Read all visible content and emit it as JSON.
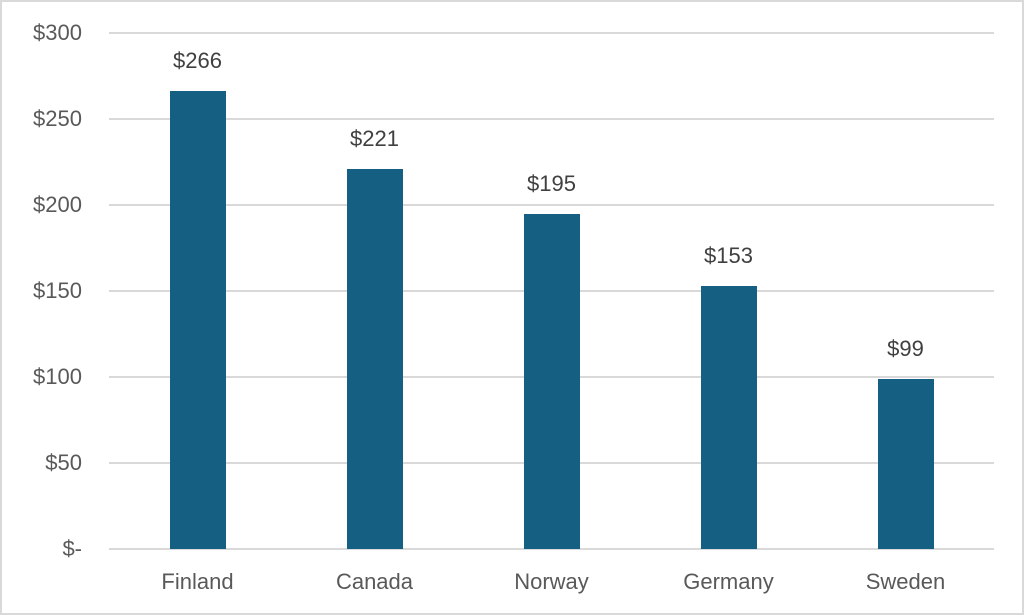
{
  "chart_data": {
    "type": "bar",
    "categories": [
      "Finland",
      "Canada",
      "Norway",
      "Germany",
      "Sweden"
    ],
    "values": [
      266,
      221,
      195,
      153,
      99
    ],
    "data_labels": [
      "$266",
      "$221",
      "$195",
      "$153",
      "$99"
    ],
    "y_ticks": [
      {
        "value": 0,
        "label": "$-"
      },
      {
        "value": 50,
        "label": "$50"
      },
      {
        "value": 100,
        "label": "$100"
      },
      {
        "value": 150,
        "label": "$150"
      },
      {
        "value": 200,
        "label": "$200"
      },
      {
        "value": 250,
        "label": "$250"
      },
      {
        "value": 300,
        "label": "$300"
      }
    ],
    "ylim": [
      0,
      300
    ],
    "grid": true,
    "legend": "none",
    "title": "",
    "xlabel": "",
    "ylabel": "",
    "colors": {
      "bar": "#156082",
      "gridline": "#D9D9D9",
      "frame_border": "#D9D9D9",
      "tick_text": "#595959",
      "category_text": "#595959",
      "data_label_text": "#404040",
      "background": "#FFFFFF"
    }
  }
}
